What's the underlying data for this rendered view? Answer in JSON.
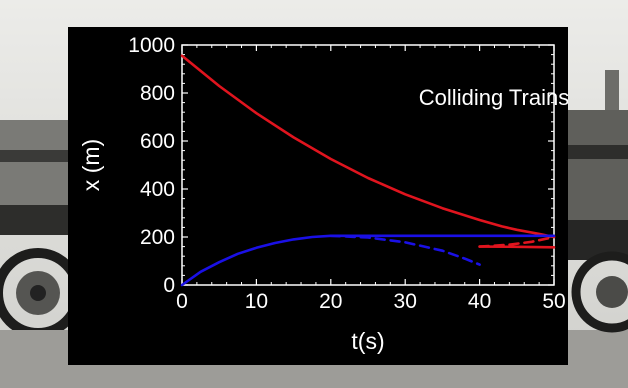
{
  "chart_data": {
    "type": "line",
    "title": "",
    "annotation": "Colliding Trains",
    "xlabel": "t(s)",
    "ylabel": "x (m)",
    "xlim": [
      0,
      50
    ],
    "ylim": [
      0,
      1000
    ],
    "xticks": [
      0,
      10,
      20,
      30,
      40,
      50
    ],
    "yticks": [
      0,
      200,
      400,
      600,
      800,
      1000
    ],
    "grid": false,
    "colors": {
      "background": "#000000",
      "axes": "#ffffff",
      "red": "#e0141e",
      "blue": "#1a10e6"
    },
    "series": [
      {
        "color": "red",
        "style": "solid",
        "points": [
          [
            0,
            955
          ],
          [
            5,
            829
          ],
          [
            10,
            716
          ],
          [
            15,
            615
          ],
          [
            20,
            525
          ],
          [
            25,
            446
          ],
          [
            30,
            378
          ],
          [
            35,
            320
          ],
          [
            40,
            271
          ],
          [
            43,
            244
          ],
          [
            45,
            230
          ],
          [
            48,
            213
          ],
          [
            50,
            200
          ]
        ]
      },
      {
        "color": "red",
        "style": "solid",
        "points": [
          [
            40,
            160
          ],
          [
            45,
            159
          ],
          [
            50,
            157
          ]
        ]
      },
      {
        "color": "red",
        "style": "dashed",
        "points": [
          [
            40,
            160
          ],
          [
            44,
            168
          ],
          [
            47,
            180
          ],
          [
            50,
            200
          ]
        ]
      },
      {
        "color": "blue",
        "style": "solid",
        "points": [
          [
            0,
            0
          ],
          [
            2.5,
            55
          ],
          [
            5,
            95
          ],
          [
            7.5,
            130
          ],
          [
            10,
            155
          ],
          [
            12.5,
            175
          ],
          [
            15,
            190
          ],
          [
            17.5,
            200
          ],
          [
            20,
            205
          ],
          [
            25,
            205
          ],
          [
            30,
            205
          ],
          [
            35,
            205
          ],
          [
            40,
            205
          ],
          [
            45,
            205
          ],
          [
            50,
            205
          ]
        ]
      },
      {
        "color": "blue",
        "style": "dashed",
        "points": [
          [
            20,
            205
          ],
          [
            25,
            198
          ],
          [
            30,
            178
          ],
          [
            35,
            143
          ],
          [
            38,
            110
          ],
          [
            40,
            85
          ]
        ]
      }
    ]
  }
}
